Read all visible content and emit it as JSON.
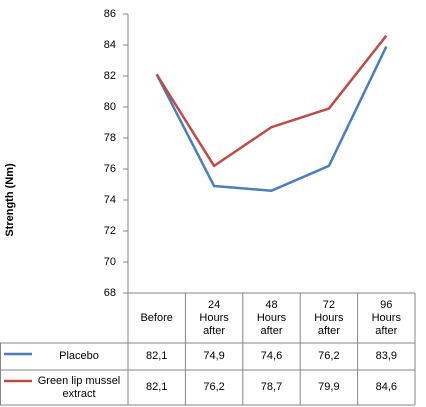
{
  "chart_data": {
    "type": "line",
    "y_label": "Strength (Nm)",
    "categories": [
      "Before",
      "24 Hours after",
      "48 Hours after",
      "72 Hours after",
      "96 Hours after"
    ],
    "series": [
      {
        "name": "Placebo",
        "color": "#4a7ebb",
        "values": [
          82.1,
          74.9,
          74.6,
          76.2,
          83.9
        ],
        "value_labels": [
          "82,1",
          "74,9",
          "74,6",
          "76,2",
          "83,9"
        ]
      },
      {
        "name": "Green lip mussel extract",
        "color": "#be4b48",
        "values": [
          82.1,
          76.2,
          78.7,
          79.9,
          84.6
        ],
        "value_labels": [
          "82,1",
          "76,2",
          "78,7",
          "79,9",
          "84,6"
        ]
      }
    ],
    "ylim": [
      68,
      86
    ],
    "yticks": [
      68,
      70,
      72,
      74,
      76,
      78,
      80,
      82,
      84,
      86
    ],
    "grid": false
  }
}
